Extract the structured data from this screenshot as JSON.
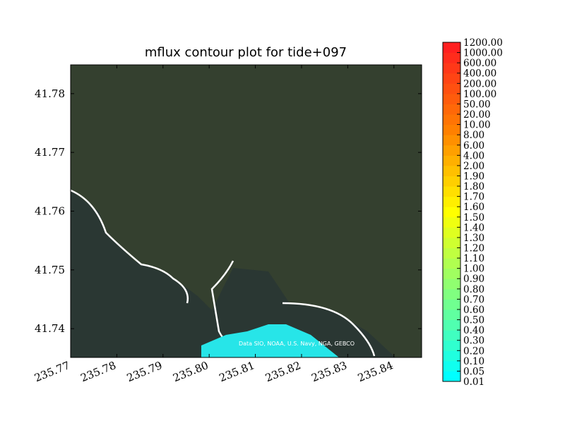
{
  "chart_data": {
    "type": "contour-map",
    "title": "mflux contour plot for tide+097",
    "attribution": "Data SIO, NOAA, U.S. Navy, NGA, GEBCO",
    "xlim": [
      235.77,
      235.846
    ],
    "xticks": [
      {
        "value": 235.77,
        "label": "235.77"
      },
      {
        "value": 235.78,
        "label": "235.78"
      },
      {
        "value": 235.79,
        "label": "235.79"
      },
      {
        "value": 235.8,
        "label": "235.80"
      },
      {
        "value": 235.81,
        "label": "235.81"
      },
      {
        "value": 235.82,
        "label": "235.82"
      },
      {
        "value": 235.83,
        "label": "235.83"
      },
      {
        "value": 235.84,
        "label": "235.84"
      }
    ],
    "ylim": [
      41.7351,
      41.7849
    ],
    "yticks": [
      41.74,
      41.75,
      41.76,
      41.77,
      41.78
    ],
    "colorbar_levels": [
      {
        "value": 0.01,
        "label": "0.01"
      },
      {
        "value": 0.05,
        "label": "0.05"
      },
      {
        "value": 0.1,
        "label": "0.10"
      },
      {
        "value": 0.2,
        "label": "0.20"
      },
      {
        "value": 0.3,
        "label": "0.30"
      },
      {
        "value": 0.4,
        "label": "0.40"
      },
      {
        "value": 0.5,
        "label": "0.50"
      },
      {
        "value": 0.6,
        "label": "0.60"
      },
      {
        "value": 0.7,
        "label": "0.70"
      },
      {
        "value": 0.8,
        "label": "0.80"
      },
      {
        "value": 0.9,
        "label": "0.90"
      },
      {
        "value": 1,
        "label": "1.00"
      },
      {
        "value": 1.1,
        "label": "1.10"
      },
      {
        "value": 1.2,
        "label": "1.20"
      },
      {
        "value": 1.3,
        "label": "1.30"
      },
      {
        "value": 1.4,
        "label": "1.40"
      },
      {
        "value": 1.5,
        "label": "1.50"
      },
      {
        "value": 1.6,
        "label": "1.60"
      },
      {
        "value": 1.7,
        "label": "1.70"
      },
      {
        "value": 1.8,
        "label": "1.80"
      },
      {
        "value": 1.9,
        "label": "1.90"
      },
      {
        "value": 2,
        "label": "2.00"
      },
      {
        "value": 4,
        "label": "4.00"
      },
      {
        "value": 6,
        "label": "6.00"
      },
      {
        "value": 8,
        "label": "8.00"
      },
      {
        "value": 10,
        "label": "10.00"
      },
      {
        "value": 20,
        "label": "20.00"
      },
      {
        "value": 50,
        "label": "50.00"
      },
      {
        "value": 100,
        "label": "100.00"
      },
      {
        "value": 200,
        "label": "200.00"
      },
      {
        "value": 400,
        "label": "400.00"
      },
      {
        "value": 600,
        "label": "600.00"
      },
      {
        "value": 1000,
        "label": "1000.00"
      },
      {
        "value": 1200,
        "label": "1200.00"
      }
    ],
    "colormap": [
      "#00ffff",
      "#80ff80",
      "#ffff00",
      "#ff8000",
      "#ff2020"
    ]
  }
}
